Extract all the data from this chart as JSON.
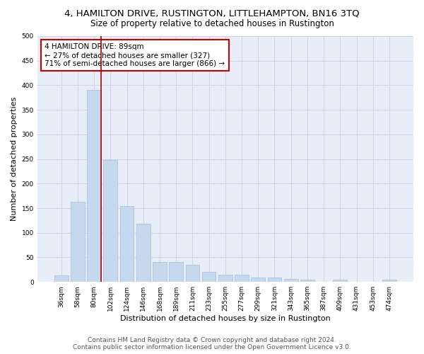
{
  "title": "4, HAMILTON DRIVE, RUSTINGTON, LITTLEHAMPTON, BN16 3TQ",
  "subtitle": "Size of property relative to detached houses in Rustington",
  "xlabel": "Distribution of detached houses by size in Rustington",
  "ylabel": "Number of detached properties",
  "categories": [
    "36sqm",
    "58sqm",
    "80sqm",
    "102sqm",
    "124sqm",
    "146sqm",
    "168sqm",
    "189sqm",
    "211sqm",
    "233sqm",
    "255sqm",
    "277sqm",
    "299sqm",
    "321sqm",
    "343sqm",
    "365sqm",
    "387sqm",
    "409sqm",
    "431sqm",
    "453sqm",
    "474sqm"
  ],
  "values": [
    13,
    163,
    390,
    248,
    155,
    118,
    40,
    40,
    35,
    20,
    14,
    14,
    9,
    9,
    6,
    4,
    0,
    5,
    0,
    0,
    4
  ],
  "bar_color": "#c5d8ed",
  "bar_edgecolor": "#a0bbda",
  "vline_index": 2,
  "vline_color": "#aa0000",
  "annotation_text": "4 HAMILTON DRIVE: 89sqm\n← 27% of detached houses are smaller (327)\n71% of semi-detached houses are larger (866) →",
  "annotation_box_color": "white",
  "annotation_box_edgecolor": "#cc0000",
  "ylim": [
    0,
    500
  ],
  "yticks": [
    0,
    50,
    100,
    150,
    200,
    250,
    300,
    350,
    400,
    450,
    500
  ],
  "grid_color": "#cdd5e5",
  "background_color": "#e8eef8",
  "footer_line1": "Contains HM Land Registry data © Crown copyright and database right 2024.",
  "footer_line2": "Contains public sector information licensed under the Open Government Licence v3.0.",
  "title_fontsize": 9.5,
  "subtitle_fontsize": 8.5,
  "xlabel_fontsize": 8,
  "ylabel_fontsize": 8,
  "tick_fontsize": 6.5,
  "annotation_fontsize": 7.5,
  "footer_fontsize": 6.5
}
